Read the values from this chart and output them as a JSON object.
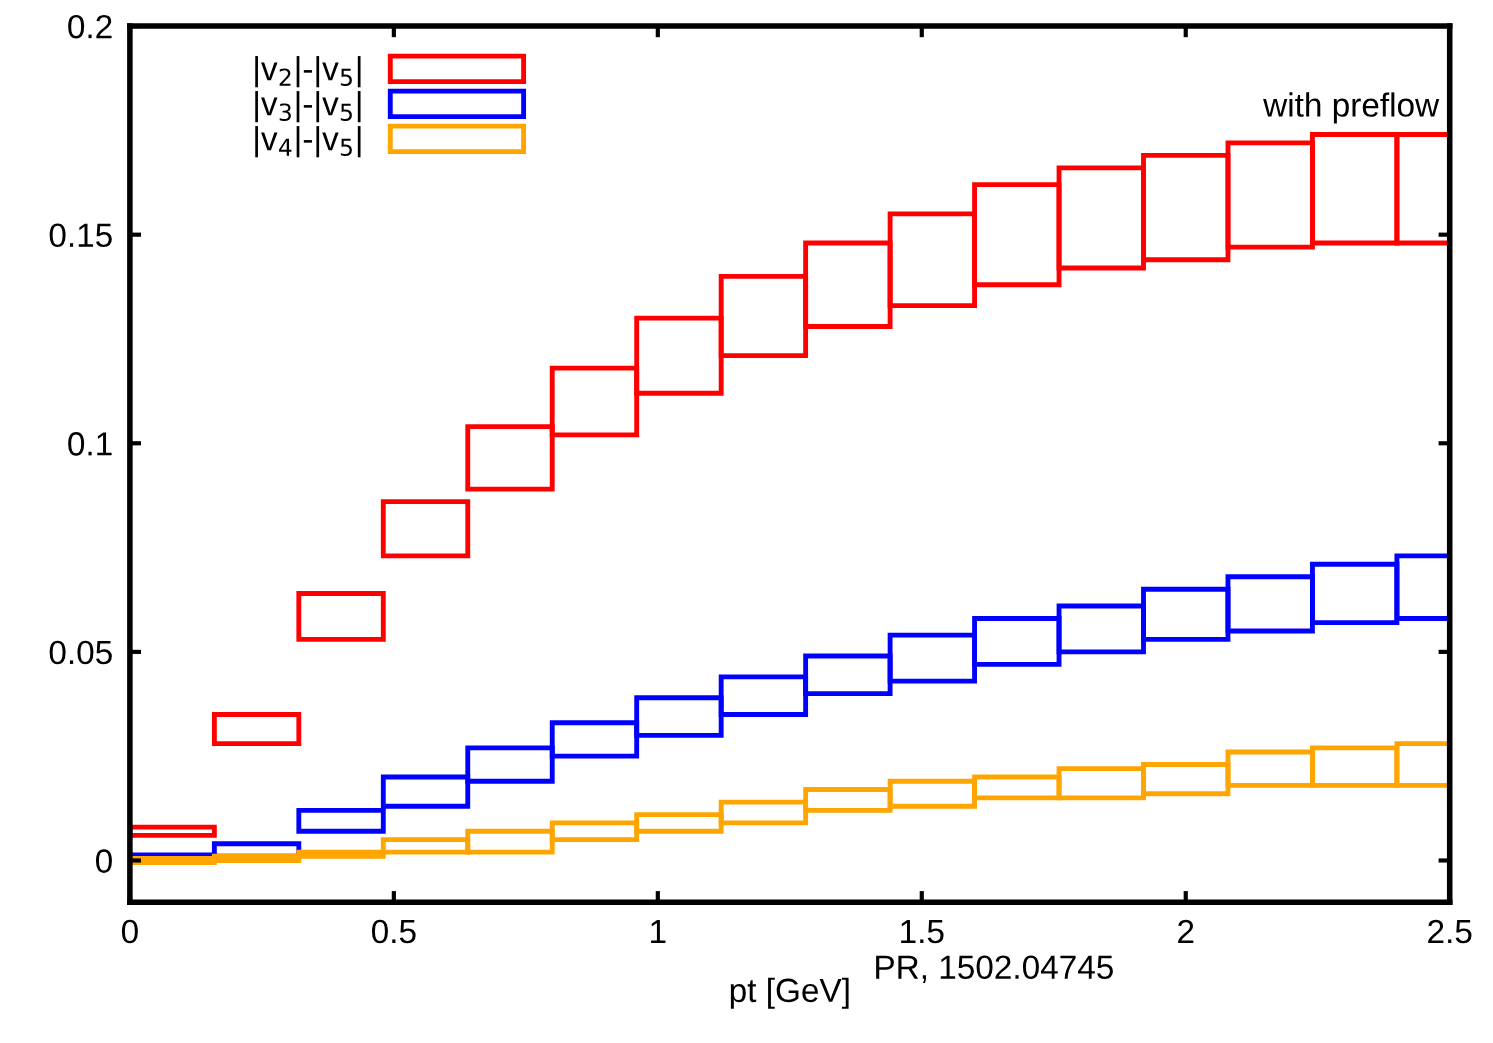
{
  "chart_data": {
    "type": "bar",
    "xlabel": "pt [GeV]",
    "x": [
      0.08,
      0.24,
      0.4,
      0.56,
      0.72,
      0.88,
      1.04,
      1.2,
      1.36,
      1.52,
      1.68,
      1.84,
      2.0,
      2.16,
      2.32,
      2.48
    ],
    "series": [
      {
        "name": "|v$_{2}$|-|v$_{5}$|",
        "color": "#ff0000",
        "base": [
          0.006,
          0.028,
          0.053,
          0.073,
          0.089,
          0.102,
          0.112,
          0.121,
          0.128,
          0.133,
          0.138,
          0.142,
          0.144,
          0.147,
          0.148,
          0.148
        ],
        "values": [
          0.002,
          0.007,
          0.011,
          0.013,
          0.015,
          0.016,
          0.018,
          0.019,
          0.02,
          0.022,
          0.024,
          0.024,
          0.025,
          0.025,
          0.026,
          0.026
        ]
      },
      {
        "name": "|v$_{3}$|-|v$_{5}$|",
        "color": "#0000ff",
        "base": [
          0.0003,
          0.001,
          0.007,
          0.013,
          0.019,
          0.025,
          0.03,
          0.035,
          0.04,
          0.043,
          0.047,
          0.05,
          0.053,
          0.055,
          0.057,
          0.058
        ],
        "values": [
          0.001,
          0.003,
          0.005,
          0.007,
          0.008,
          0.008,
          0.009,
          0.009,
          0.009,
          0.011,
          0.011,
          0.011,
          0.012,
          0.013,
          0.014,
          0.015
        ]
      },
      {
        "name": "|v$_{4}$|-|v$_{5}$|",
        "color": "#ffa500",
        "base": [
          -0.0005,
          0.0,
          0.001,
          0.002,
          0.002,
          0.005,
          0.007,
          0.009,
          0.012,
          0.013,
          0.015,
          0.015,
          0.016,
          0.018,
          0.018,
          0.018
        ],
        "values": [
          0.001,
          0.001,
          0.001,
          0.003,
          0.005,
          0.004,
          0.004,
          0.005,
          0.005,
          0.006,
          0.005,
          0.007,
          0.007,
          0.008,
          0.009,
          0.01
        ]
      }
    ],
    "xlim": [
      0,
      2.5
    ],
    "xticks": [
      0,
      0.5,
      1,
      1.5,
      2,
      2.5
    ],
    "ylim": [
      -0.01,
      0.2
    ],
    "yticks": [
      0,
      0.05,
      0.1,
      0.15,
      0.2
    ],
    "grid": false,
    "legend": "top left",
    "annotations": [
      {
        "text": "with preflow",
        "x": 2.48,
        "y": 0.174
      },
      "PR, 1502.04745"
    ]
  }
}
